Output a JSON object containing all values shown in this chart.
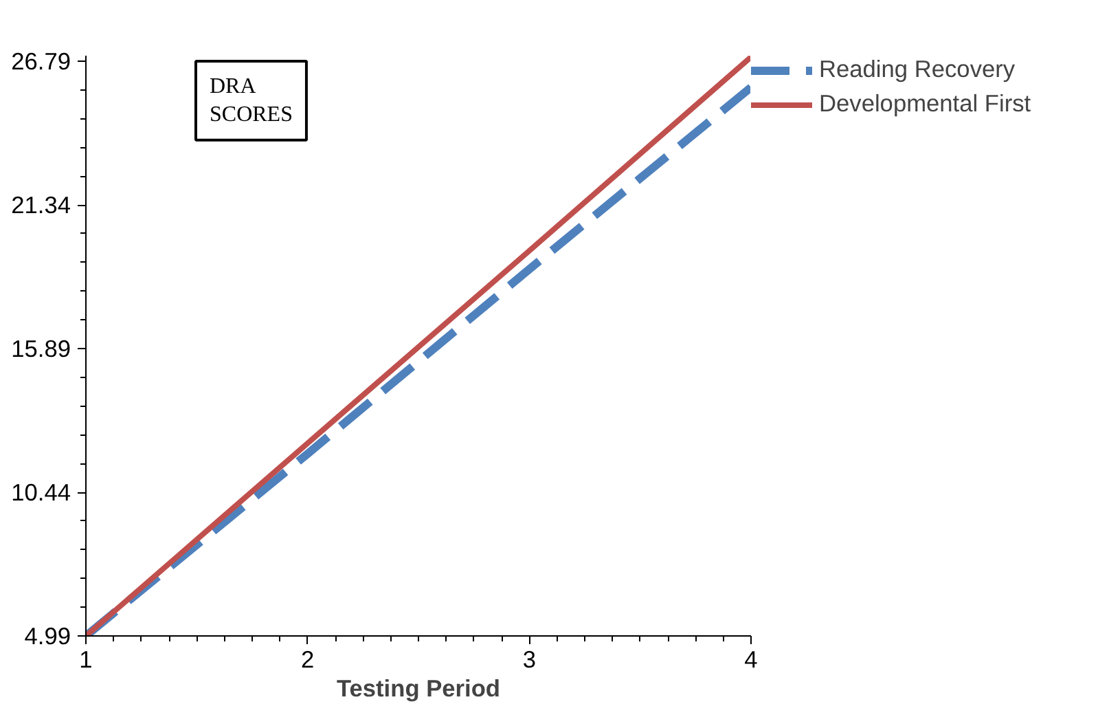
{
  "chart_data": {
    "type": "line",
    "title": "DRA SCORES",
    "xlabel": "Testing Period",
    "x": [
      1,
      2,
      3,
      4
    ],
    "series": [
      {
        "name": "Reading Recovery",
        "color": "#4f81bd",
        "values": [
          4.99,
          11.9,
          18.9,
          25.8
        ],
        "line_style": "dashed"
      },
      {
        "name": "Developmental First",
        "color": "#c0504d",
        "values": [
          4.99,
          12.3,
          19.6,
          26.95
        ],
        "line_style": "solid"
      }
    ],
    "xlim": [
      1,
      4
    ],
    "ylim": [
      4.99,
      27.0
    ],
    "xticks": [
      1,
      2,
      3,
      4
    ],
    "yticks": [
      4.99,
      10.44,
      15.89,
      21.34,
      26.79
    ],
    "grid": false,
    "legend": "right",
    "marker": "none"
  }
}
